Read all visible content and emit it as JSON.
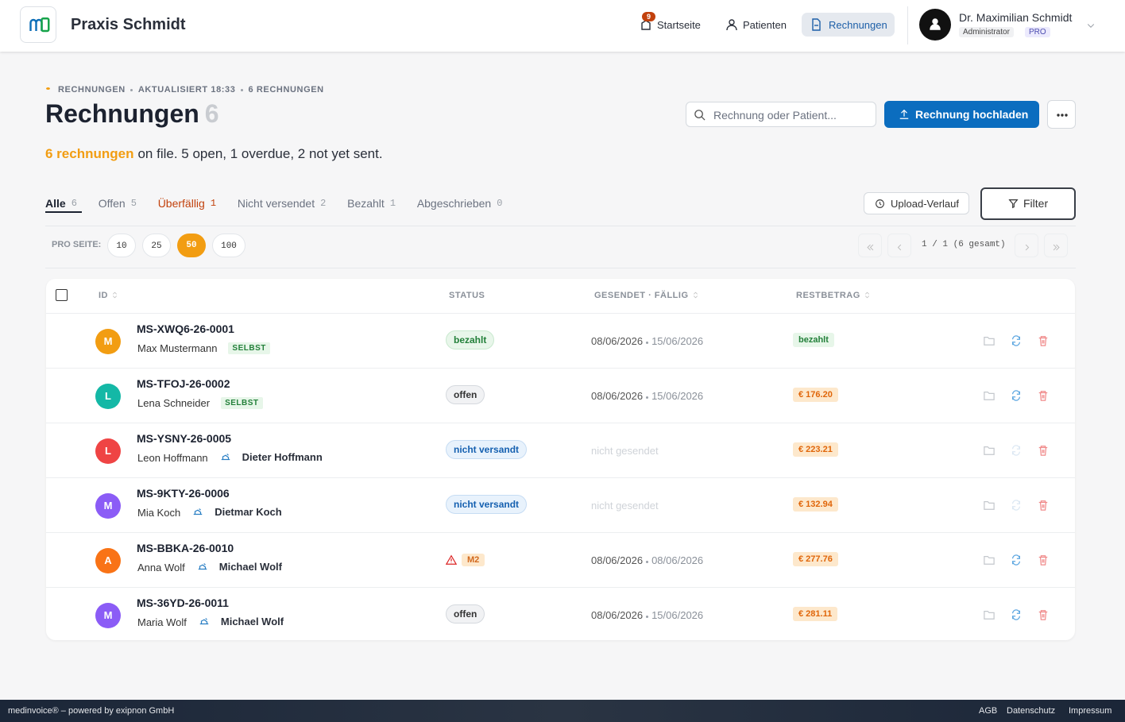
{
  "header": {
    "brand": "Praxis Schmidt",
    "nav": [
      {
        "label": "Startseite",
        "badge": "9"
      },
      {
        "label": "Patienten"
      },
      {
        "label": "Rechnungen",
        "active": true
      }
    ],
    "user": {
      "name": "Dr. Maximilian Schmidt",
      "role": "Administrator",
      "plan": "PRO"
    }
  },
  "page": {
    "breadcrumb": [
      "RECHNUNGEN",
      "AKTUALISIERT 18:33",
      "6 RECHNUNGEN"
    ],
    "title": "Rechnungen",
    "title_count": "6",
    "summary_highlight": "6 rechnungen",
    "summary_rest": "on file. 5 open, 1 overdue, 2 not yet sent.",
    "search_placeholder": "Rechnung oder Patient...",
    "upload_button": "Rechnung hochladen"
  },
  "tabs": [
    {
      "label": "Alle",
      "count": "6",
      "active": true
    },
    {
      "label": "Offen",
      "count": "5"
    },
    {
      "label": "Überfällig",
      "count": "1",
      "alert": true
    },
    {
      "label": "Nicht versendet",
      "count": "2"
    },
    {
      "label": "Bezahlt",
      "count": "1"
    },
    {
      "label": "Abgeschrieben",
      "count": "0"
    }
  ],
  "toolbar": {
    "upload_history": "Upload-Verlauf",
    "filter": "Filter",
    "per_page_label": "PRO SEITE:",
    "per_page_options": [
      "10",
      "25",
      "50",
      "100"
    ],
    "per_page_selected": 2,
    "pagination": "1 / 1 (6 gesamt)"
  },
  "table": {
    "columns": [
      "ID",
      "STATUS",
      "GESENDET · FÄLLIG",
      "RESTBETRAG"
    ],
    "rows": [
      {
        "id": "MS-XWQ6-26-0001",
        "avatar": "M",
        "avatar_color": "#f29d12",
        "patient": "Max Mustermann",
        "tag": "SELBST",
        "status": "bezahlt",
        "status_kind": "paid",
        "sent": "08/06/2026",
        "due": "15/06/2026",
        "balance": "bezahlt",
        "balance_kind": "paid"
      },
      {
        "id": "MS-TFOJ-26-0002",
        "avatar": "L",
        "avatar_color": "#14b8a6",
        "patient": "Lena Schneider",
        "tag": "SELBST",
        "status": "offen",
        "status_kind": "open",
        "sent": "08/06/2026",
        "due": "15/06/2026",
        "balance": "€ 176.20",
        "balance_kind": "due"
      },
      {
        "id": "MS-YSNY-26-0005",
        "avatar": "L",
        "avatar_color": "#ef4444",
        "patient": "Leon Hoffmann",
        "insured": "Dieter Hoffmann",
        "status": "nicht versandt",
        "status_kind": "unsent",
        "sent_text": "nicht gesendet",
        "balance": "€ 223.21",
        "balance_kind": "due"
      },
      {
        "id": "MS-9KTY-26-0006",
        "avatar": "M",
        "avatar_color": "#8b5cf6",
        "patient": "Mia Koch",
        "insured": "Dietmar Koch",
        "status": "nicht versandt",
        "status_kind": "unsent",
        "sent_text": "nicht gesendet",
        "balance": "€ 132.94",
        "balance_kind": "due"
      },
      {
        "id": "MS-BBKA-26-0010",
        "avatar": "A",
        "avatar_color": "#f97316",
        "patient": "Anna Wolf",
        "insured": "Michael Wolf",
        "status": "M2",
        "status_kind": "warn",
        "sent": "08/06/2026",
        "due": "08/06/2026",
        "balance": "€ 277.76",
        "balance_kind": "due"
      },
      {
        "id": "MS-36YD-26-0011",
        "avatar": "M",
        "avatar_color": "#8b5cf6",
        "patient": "Maria Wolf",
        "insured": "Michael Wolf",
        "status": "offen",
        "status_kind": "open",
        "sent": "08/06/2026",
        "due": "15/06/2026",
        "balance": "€ 281.11",
        "balance_kind": "due"
      }
    ]
  },
  "footer": {
    "text": "medinvoice® – powered by exipnon GmbH",
    "links": [
      "AGB",
      "Datenschutz",
      "Impressum"
    ]
  }
}
